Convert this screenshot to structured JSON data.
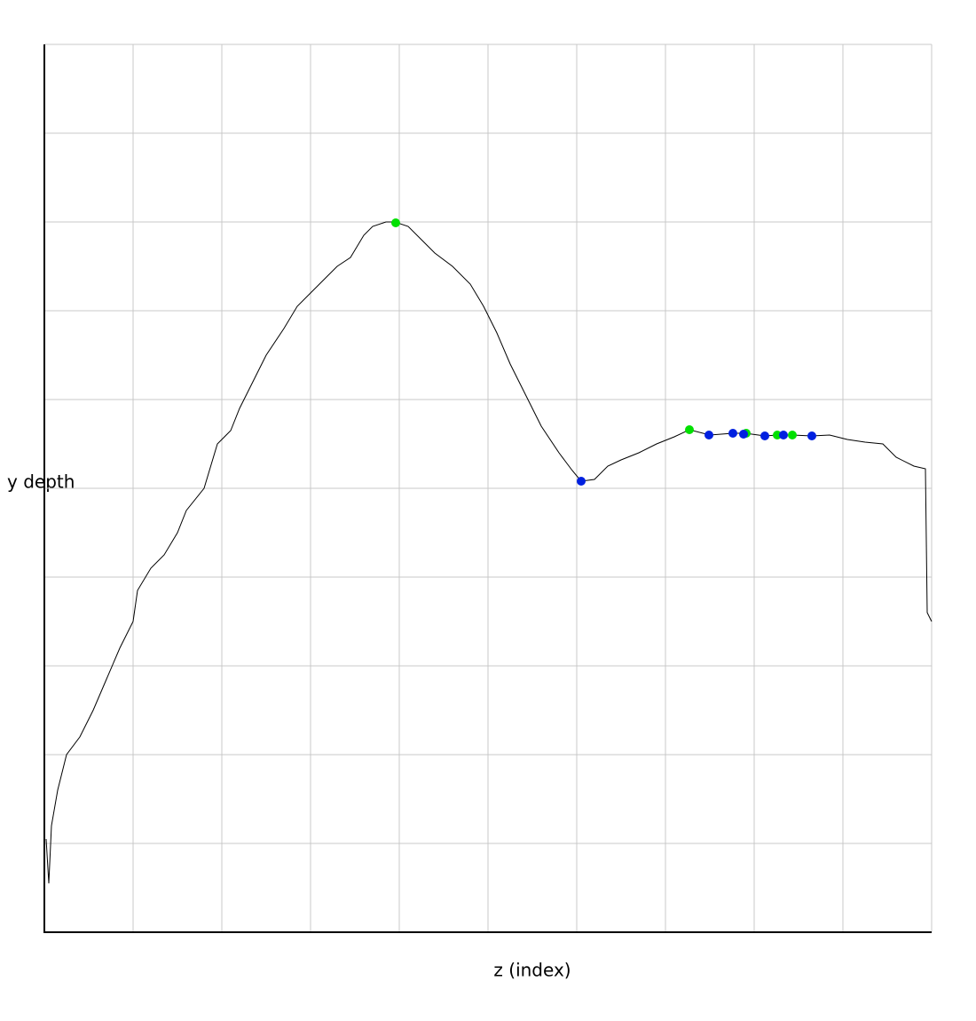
{
  "chart_data": {
    "type": "line",
    "xlabel": "z (index)",
    "ylabel": "y depth",
    "xlim": [
      0,
      1000
    ],
    "xticks": [
      0,
      100,
      200,
      300,
      400,
      500,
      600,
      700,
      800,
      900,
      1000
    ],
    "ylim": [
      0,
      1000
    ],
    "yticks": [
      0,
      100,
      200,
      300,
      400,
      500,
      600,
      700,
      800,
      900,
      1000
    ],
    "grid": true,
    "series": [
      {
        "mode": "line",
        "color": "#000000",
        "x": [
          2,
          5,
          8,
          15,
          25,
          40,
          55,
          70,
          85,
          100,
          105,
          120,
          135,
          150,
          160,
          180,
          195,
          210,
          220,
          230,
          240,
          250,
          270,
          285,
          300,
          315,
          330,
          345,
          360,
          370,
          385,
          395,
          410,
          425,
          440,
          460,
          480,
          495,
          510,
          525,
          540,
          560,
          580,
          595,
          605,
          620,
          635,
          650,
          670,
          690,
          710,
          727,
          750,
          776,
          790,
          812,
          826,
          833,
          843,
          865,
          885,
          905,
          925,
          945,
          960,
          980,
          993,
          995,
          1000
        ],
        "values": [
          105,
          55,
          120,
          160,
          200,
          220,
          250,
          285,
          320,
          350,
          385,
          410,
          425,
          450,
          475,
          500,
          550,
          565,
          590,
          610,
          630,
          650,
          680,
          705,
          720,
          735,
          750,
          760,
          785,
          795,
          800,
          800,
          795,
          780,
          765,
          750,
          730,
          705,
          675,
          640,
          610,
          570,
          540,
          520,
          508,
          510,
          525,
          532,
          540,
          550,
          558,
          566,
          560,
          562,
          562,
          559,
          560,
          560,
          560,
          559,
          560,
          555,
          552,
          550,
          535,
          525,
          522,
          360,
          350
        ]
      },
      {
        "mode": "markers",
        "color": "#00e000",
        "x": [
          396,
          727,
          791,
          826,
          843
        ],
        "values": [
          799,
          566,
          562,
          560,
          560
        ]
      },
      {
        "mode": "markers",
        "color": "#0020e0",
        "x": [
          605,
          749,
          776,
          788,
          812,
          833,
          865
        ],
        "values": [
          508,
          560,
          562,
          561,
          559,
          560,
          559
        ]
      }
    ]
  }
}
